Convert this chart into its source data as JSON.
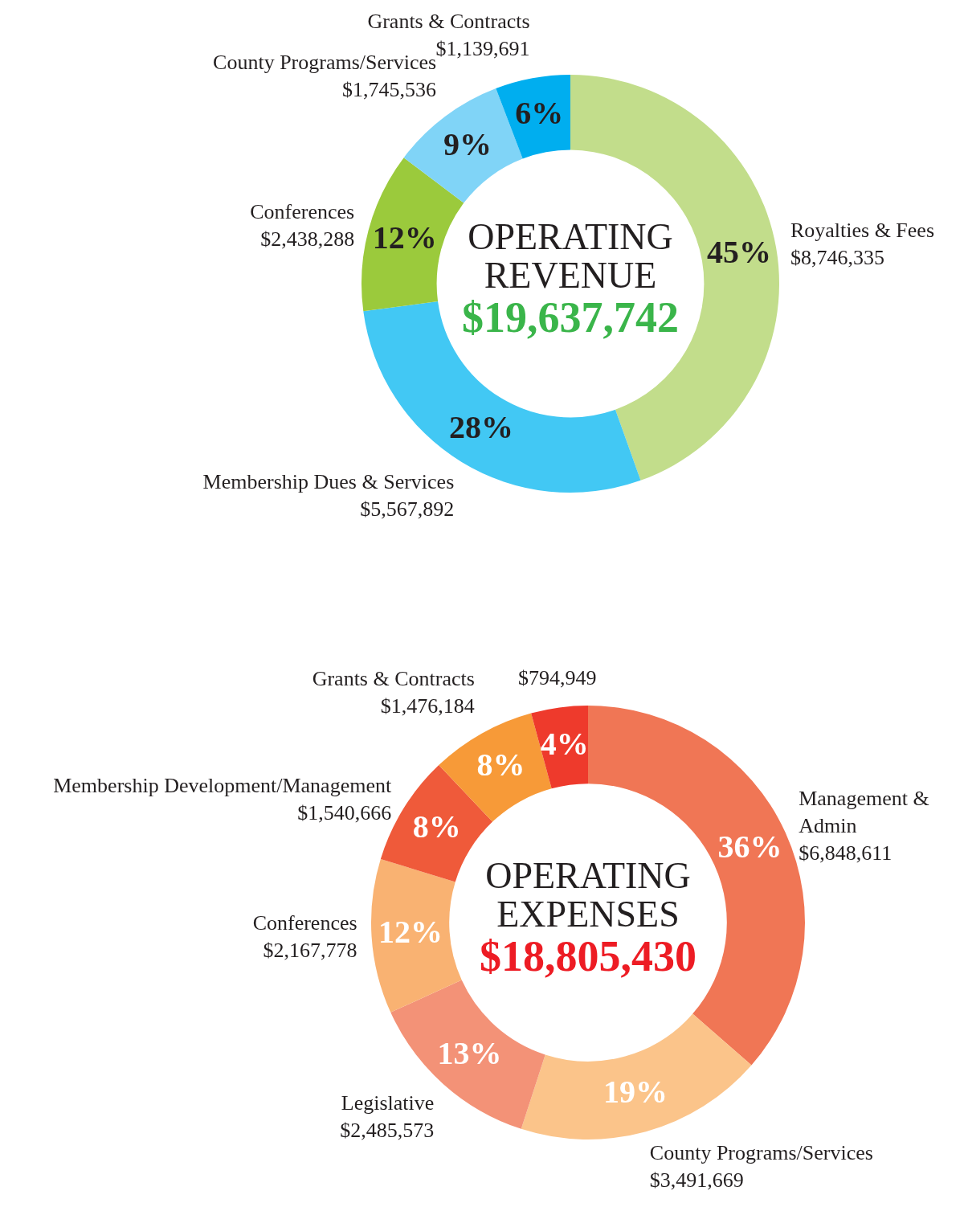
{
  "chart_data": [
    {
      "type": "donut",
      "title": "OPERATING REVENUE",
      "subtitle": "$19,637,742",
      "legend": false,
      "categories": [
        "Royalties & Fees",
        "Membership Dues & Services",
        "Conferences",
        "County Programs/Services",
        "Grants & Contracts"
      ],
      "values": [
        8746335,
        5567892,
        2438288,
        1745536,
        1139691
      ],
      "colors": [
        "#c2dd8b",
        "#42c8f4",
        "#9bca3c",
        "#80d4f7",
        "#00aeef"
      ],
      "value_labels": [
        "$8,746,335",
        "$5,567,892",
        "$2,438,288",
        "$1,745,536",
        "$1,139,691"
      ],
      "annotations": [
        "45%",
        "28%",
        "12%",
        "9%",
        "6%"
      ]
    },
    {
      "type": "donut",
      "title": "OPERATING EXPENSES",
      "subtitle": "$18,805,430",
      "legend": false,
      "categories": [
        "Management & Admin",
        "County Programs/Services",
        "Legislative",
        "Conferences",
        "Membership Development/Management",
        "Grants & Contracts",
        null
      ],
      "values": [
        6848611,
        3491669,
        2485573,
        2167778,
        1540666,
        1476184,
        794949
      ],
      "colors": [
        "#f07655",
        "#fbc48a",
        "#f39277",
        "#f9b272",
        "#ef5a3a",
        "#f79a38",
        "#ee3a2c"
      ],
      "value_labels": [
        "$6,848,611",
        "$3,491,669",
        "$2,485,573",
        "$2,167,778",
        "$1,540,666",
        "$1,476,184",
        "$794,949"
      ],
      "annotations": [
        "36%",
        "19%",
        "13%",
        "12%",
        "8%",
        "8%",
        "4%"
      ]
    }
  ]
}
